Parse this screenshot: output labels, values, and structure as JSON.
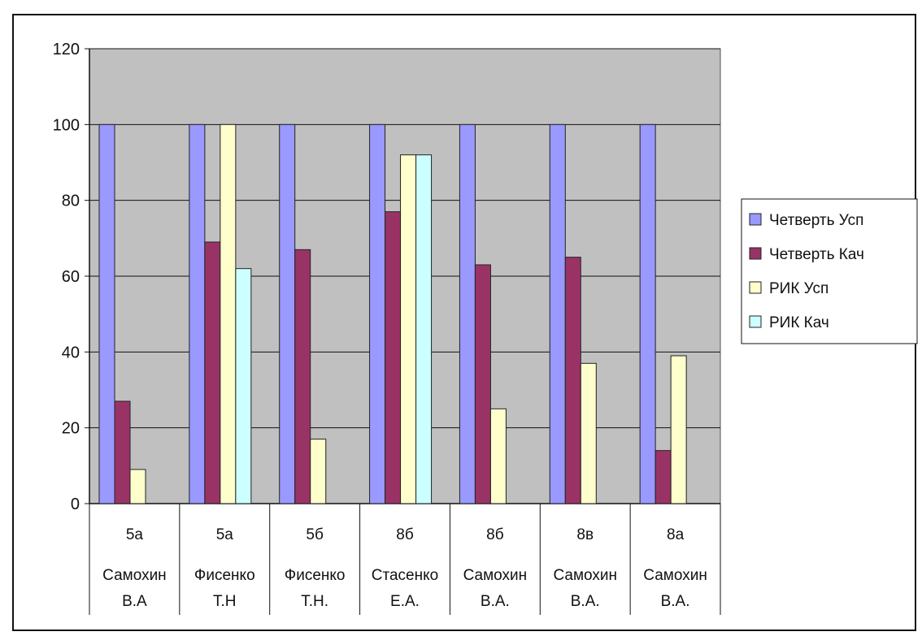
{
  "chart_data": {
    "type": "bar",
    "ylim": [
      0,
      120
    ],
    "yticks": [
      0,
      20,
      40,
      60,
      80,
      100,
      120
    ],
    "categories": [
      {
        "line1": "5а",
        "line2": "Самохин",
        "line3": "В.А"
      },
      {
        "line1": "5а",
        "line2": "Фисенко",
        "line3": "Т.Н"
      },
      {
        "line1": "5б",
        "line2": "Фисенко",
        "line3": "Т.Н."
      },
      {
        "line1": "8б",
        "line2": "Стасенко",
        "line3": "Е.А."
      },
      {
        "line1": "8б",
        "line2": "Самохин",
        "line3": "В.А."
      },
      {
        "line1": "8в",
        "line2": "Самохин",
        "line3": "В.А."
      },
      {
        "line1": "8а",
        "line2": "Самохин",
        "line3": "В.А."
      }
    ],
    "series": [
      {
        "name": "Четверть Усп",
        "color": "#9999ff",
        "values": [
          100,
          100,
          100,
          100,
          100,
          100,
          100
        ]
      },
      {
        "name": "Четверть Кач",
        "color": "#993366",
        "values": [
          27,
          69,
          67,
          77,
          63,
          65,
          14
        ]
      },
      {
        "name": "РИК Усп",
        "color": "#ffffcc",
        "values": [
          9,
          100,
          17,
          92,
          25,
          37,
          39
        ]
      },
      {
        "name": "РИК Кач",
        "color": "#ccffff",
        "values": [
          0,
          62,
          0,
          92,
          0,
          0,
          0
        ]
      }
    ],
    "grid": true,
    "legend": "right",
    "plot_background": "#c0c0c0"
  }
}
